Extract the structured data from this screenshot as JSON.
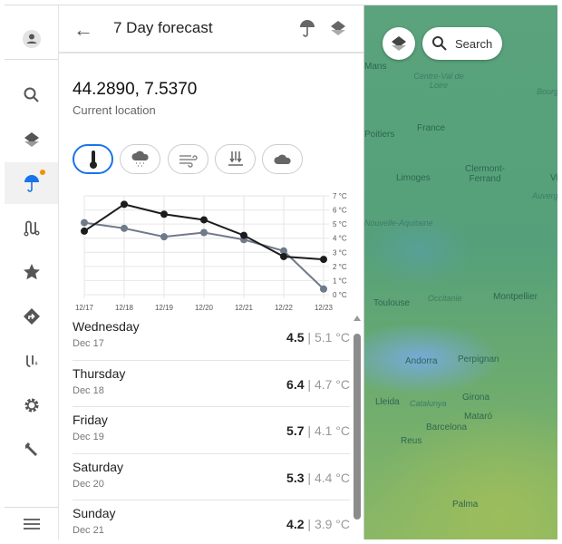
{
  "header": {
    "title": "7 Day forecast"
  },
  "location": {
    "coords": "44.2890, 7.5370",
    "label": "Current location"
  },
  "sidebar": {
    "items": [
      "account",
      "search",
      "layers",
      "weather",
      "routes",
      "favorites",
      "directions",
      "track",
      "settings",
      "tools"
    ],
    "active": "weather",
    "accent": "#1a73e8",
    "badge_color": "#f39200"
  },
  "filters": [
    "temperature",
    "precipitation",
    "wind",
    "pressure",
    "clouds"
  ],
  "chart_data": {
    "type": "line",
    "categories": [
      "12/17",
      "12/18",
      "12/19",
      "12/20",
      "12/21",
      "12/22",
      "12/23"
    ],
    "series": [
      {
        "values": [
          4.5,
          6.4,
          5.7,
          5.3,
          4.2,
          2.7,
          2.5
        ],
        "color": "#1c1c1c"
      },
      {
        "values": [
          5.1,
          4.7,
          4.1,
          4.4,
          3.9,
          3.1,
          0.4
        ],
        "color": "#6f7a8a"
      }
    ],
    "yticks": [
      "0 °C",
      "1 °C",
      "2 °C",
      "3 °C",
      "4 °C",
      "5 °C",
      "6 °C",
      "7 °C"
    ],
    "ylim": [
      0,
      7
    ],
    "grid": true
  },
  "days": [
    {
      "day": "Wednesday",
      "date": "Dec 17",
      "max": "4.5",
      "min": "5.1 °C"
    },
    {
      "day": "Thursday",
      "date": "Dec 18",
      "max": "6.4",
      "min": "4.7 °C"
    },
    {
      "day": "Friday",
      "date": "Dec 19",
      "max": "5.7",
      "min": "4.1 °C"
    },
    {
      "day": "Saturday",
      "date": "Dec 20",
      "max": "5.3",
      "min": "4.4 °C"
    },
    {
      "day": "Sunday",
      "date": "Dec 21",
      "max": "4.2",
      "min": "3.9 °C"
    }
  ],
  "map": {
    "search_label": "Search",
    "labels": [
      "Mans",
      "Centre-Val de Loire",
      "France",
      "Poitiers",
      "Limoges",
      "Clermont-Ferrand",
      "Villeurb",
      "Nouvelle-Aquitaine",
      "Toulouse",
      "Occitanie",
      "Montpellier",
      "Andorra",
      "Perpignan",
      "Girona",
      "Lleida",
      "Catalunya",
      "Mataró",
      "Barcelona",
      "Reus",
      "Palma",
      "Bourg",
      "Auverg"
    ]
  }
}
